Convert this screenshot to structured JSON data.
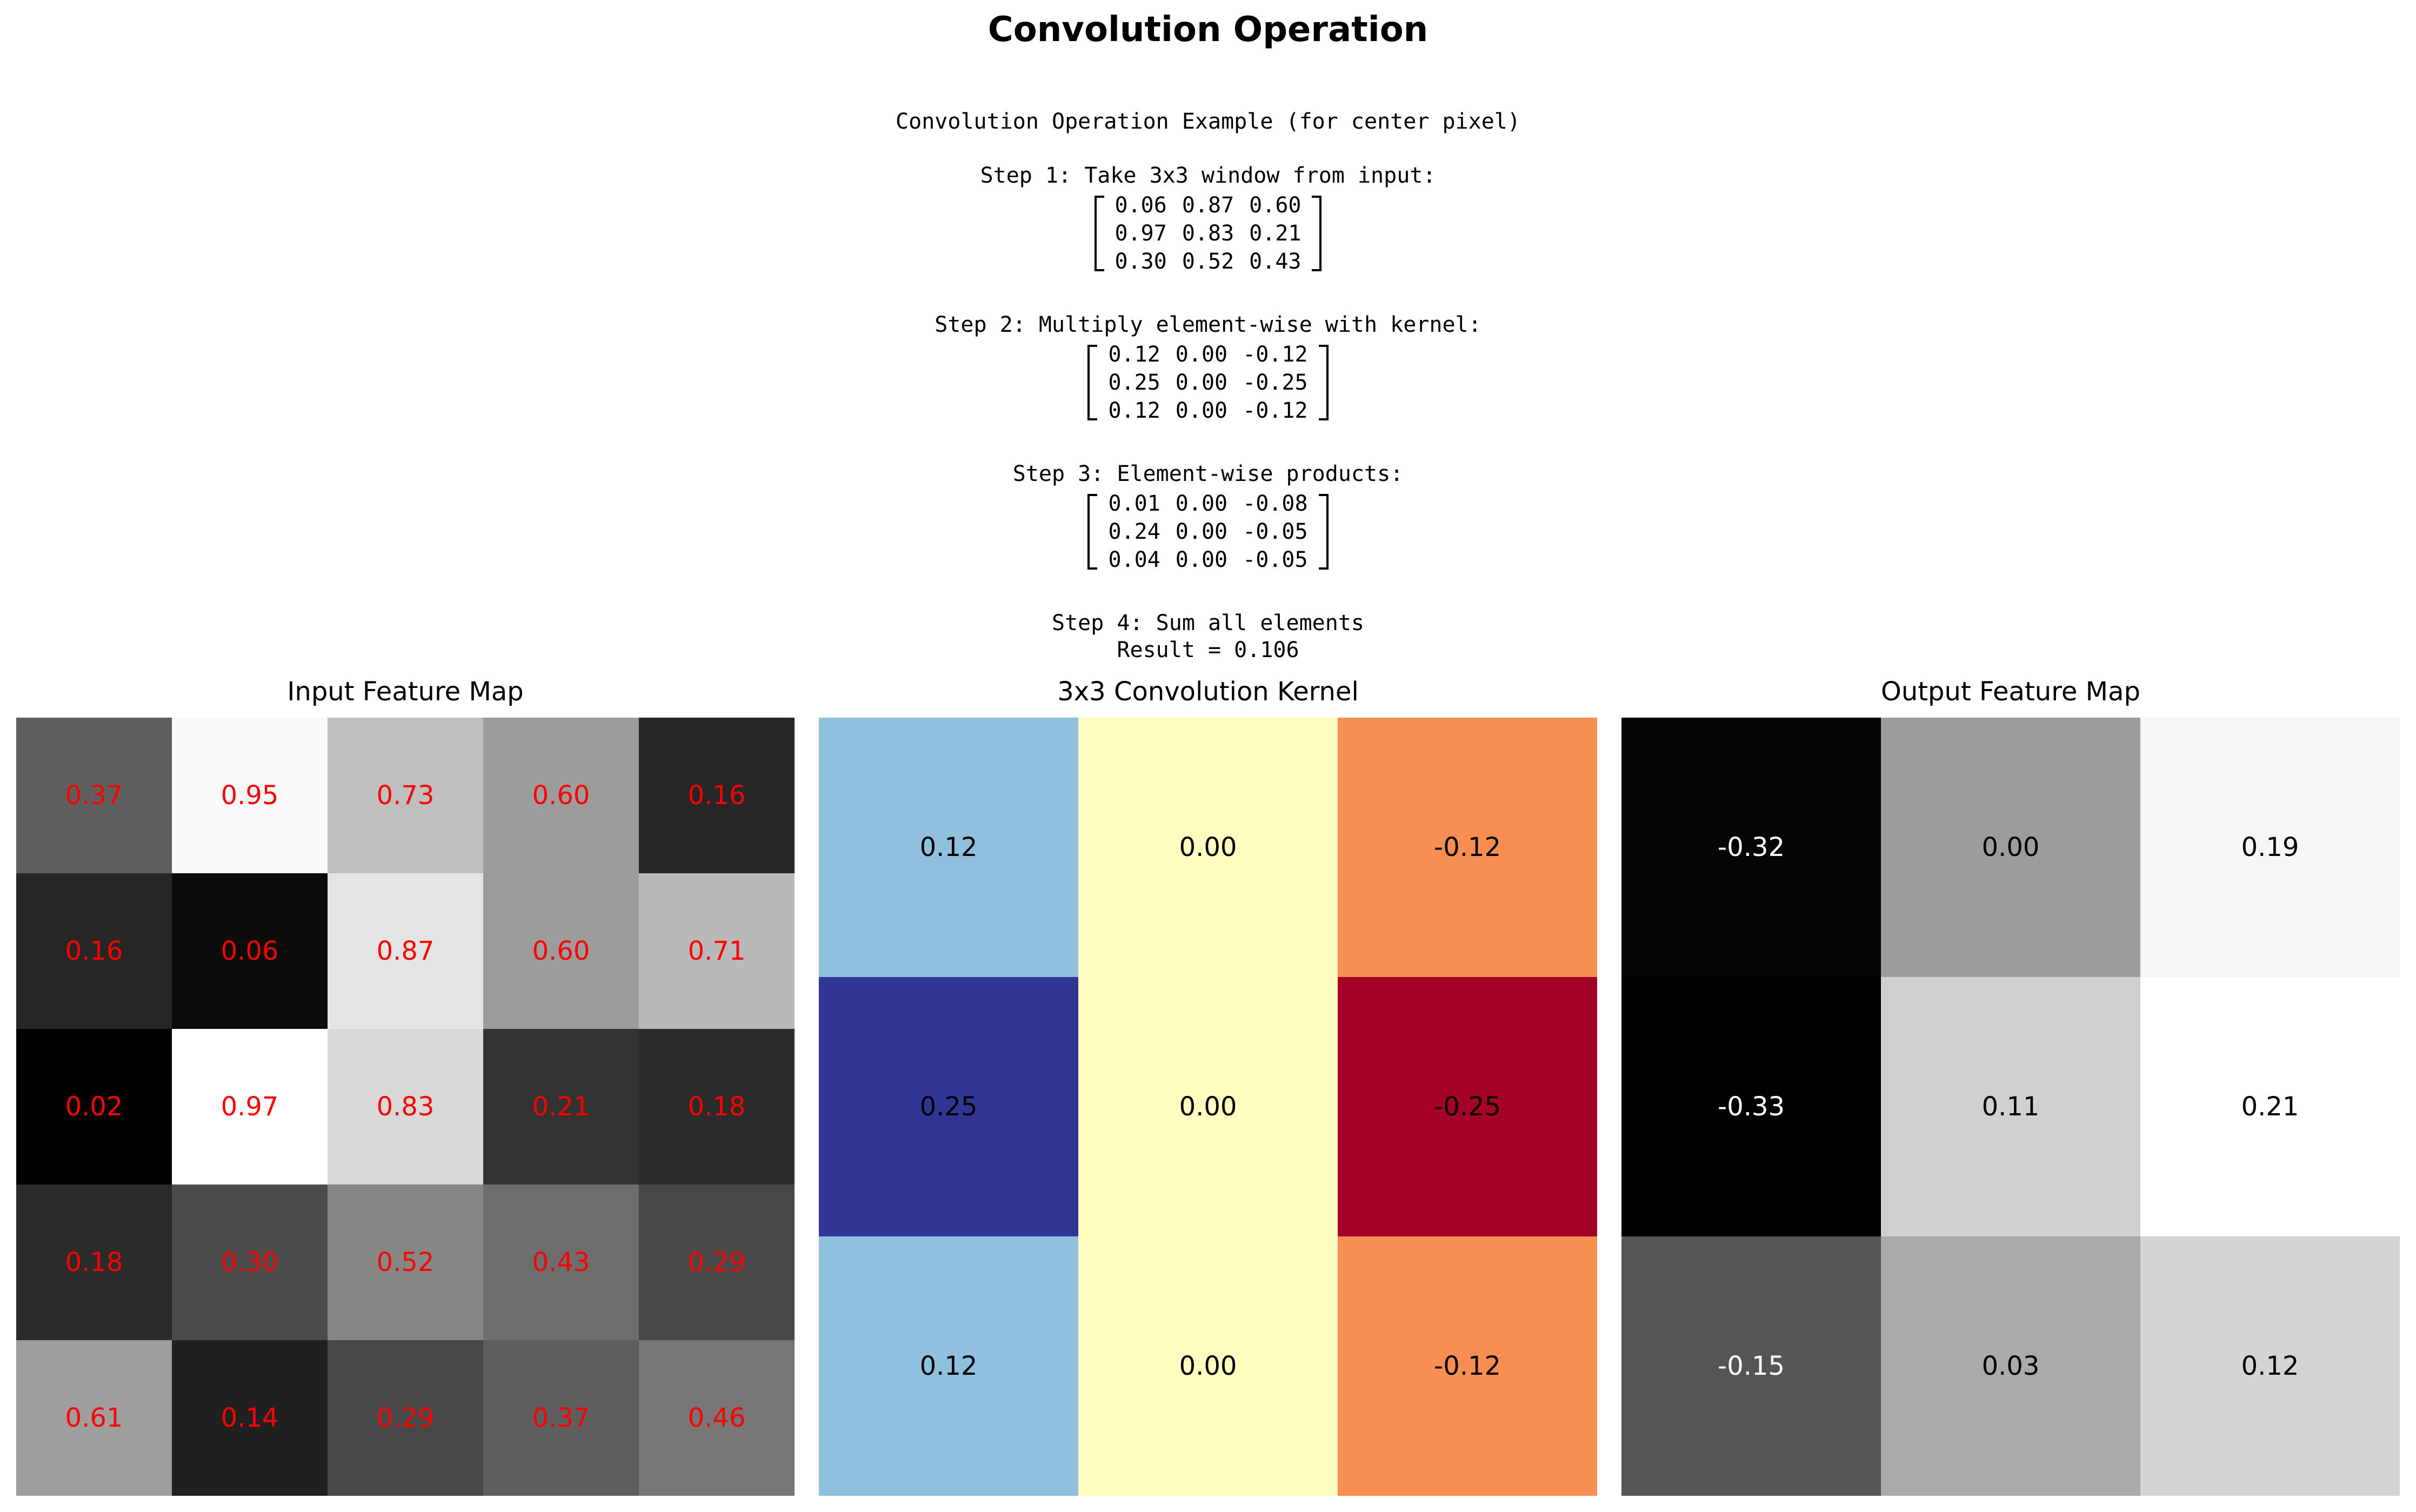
{
  "title": "Convolution Operation",
  "explanation": {
    "heading": "Convolution Operation Example (for center pixel)",
    "step1": "Step 1: Take 3x3 window from input:",
    "window": [
      [
        "0.06",
        "0.87",
        "0.60"
      ],
      [
        "0.97",
        "0.83",
        "0.21"
      ],
      [
        "0.30",
        "0.52",
        "0.43"
      ]
    ],
    "step2": "Step 2: Multiply element-wise with kernel:",
    "kernel_text": [
      [
        "0.12",
        "0.00",
        "-0.12"
      ],
      [
        "0.25",
        "0.00",
        "-0.25"
      ],
      [
        "0.12",
        "0.00",
        "-0.12"
      ]
    ],
    "step3": "Step 3: Element-wise products:",
    "products": [
      [
        "0.01",
        "0.00",
        "-0.08"
      ],
      [
        "0.24",
        "0.00",
        "-0.05"
      ],
      [
        "0.04",
        "0.00",
        "-0.05"
      ]
    ],
    "step4": "Step 4: Sum all elements",
    "result": "Result = 0.106"
  },
  "panels": {
    "input_title": "Input Feature Map",
    "kernel_title": "3x3 Convolution Kernel",
    "output_title": "Output Feature Map"
  },
  "chart_data": [
    {
      "type": "heatmap",
      "title": "Input Feature Map",
      "colormap": "gray",
      "label_color": "#ff0000",
      "values": [
        [
          0.37,
          0.95,
          0.73,
          0.6,
          0.16
        ],
        [
          0.16,
          0.06,
          0.87,
          0.6,
          0.71
        ],
        [
          0.02,
          0.97,
          0.83,
          0.21,
          0.18
        ],
        [
          0.18,
          0.3,
          0.52,
          0.43,
          0.29
        ],
        [
          0.61,
          0.14,
          0.29,
          0.37,
          0.46
        ]
      ]
    },
    {
      "type": "heatmap",
      "title": "3x3 Convolution Kernel",
      "colormap": "RdYlBu",
      "colors": [
        [
          "#8fc1de",
          "#fefec0",
          "#f98e52"
        ],
        [
          "#313695",
          "#fefec0",
          "#a50026"
        ],
        [
          "#8fc1de",
          "#fefec0",
          "#f98e52"
        ]
      ],
      "values": [
        [
          0.12,
          0.0,
          -0.12
        ],
        [
          0.25,
          0.0,
          -0.25
        ],
        [
          0.12,
          0.0,
          -0.12
        ]
      ]
    },
    {
      "type": "heatmap",
      "title": "Output Feature Map",
      "colormap": "gray",
      "values": [
        [
          -0.32,
          0.0,
          0.19
        ],
        [
          -0.33,
          0.11,
          0.21
        ],
        [
          -0.15,
          0.03,
          0.12
        ]
      ]
    }
  ]
}
